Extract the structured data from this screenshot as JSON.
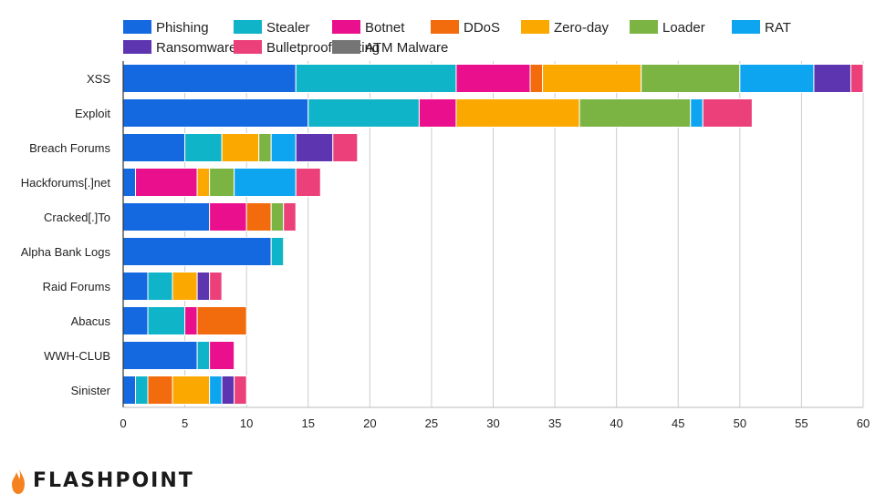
{
  "chart_data": {
    "type": "bar",
    "orientation": "horizontal",
    "stacked": true,
    "title": "",
    "xlabel": "",
    "ylabel": "",
    "xlim": [
      0,
      60
    ],
    "x_ticks": [
      0,
      5,
      10,
      15,
      20,
      25,
      30,
      35,
      40,
      45,
      50,
      55,
      60
    ],
    "grid": "vertical",
    "legend_position": "top",
    "categories": [
      "XSS",
      "Exploit",
      "Breach Forums",
      "Hackforums[.]net",
      "Cracked[.]To",
      "Alpha Bank Logs",
      "Raid Forums",
      "Abacus",
      "WWH-CLUB",
      "Sinister"
    ],
    "series": [
      {
        "name": "Phishing",
        "color": "#1469e0",
        "values": [
          14,
          15,
          5,
          1,
          7,
          12,
          2,
          2,
          6,
          1
        ]
      },
      {
        "name": "Stealer",
        "color": "#10b4c8",
        "values": [
          13,
          9,
          3,
          0,
          0,
          1,
          2,
          3,
          1,
          1
        ]
      },
      {
        "name": "Botnet",
        "color": "#ea0f8c",
        "values": [
          6,
          3,
          0,
          5,
          3,
          0,
          0,
          1,
          2,
          0
        ]
      },
      {
        "name": "DDoS",
        "color": "#f26b0c",
        "values": [
          1,
          0,
          0,
          0,
          2,
          0,
          0,
          4,
          0,
          2
        ]
      },
      {
        "name": "Zero-day",
        "color": "#fba800",
        "values": [
          8,
          10,
          3,
          1,
          0,
          0,
          2,
          0,
          0,
          3
        ]
      },
      {
        "name": "Loader",
        "color": "#7cb444",
        "values": [
          8,
          9,
          1,
          2,
          1,
          0,
          0,
          0,
          0,
          0
        ]
      },
      {
        "name": "RAT",
        "color": "#0ea5f0",
        "values": [
          6,
          1,
          2,
          5,
          0,
          0,
          0,
          0,
          0,
          1
        ]
      },
      {
        "name": "Ransomware",
        "color": "#5e35b1",
        "values": [
          3,
          0,
          3,
          0,
          0,
          0,
          1,
          0,
          0,
          1
        ]
      },
      {
        "name": "Bulletproof hosting",
        "color": "#ec407a",
        "values": [
          1,
          4,
          2,
          2,
          1,
          0,
          1,
          0,
          0,
          1
        ]
      },
      {
        "name": "ATM Malware",
        "color": "#757575",
        "values": [
          0,
          0,
          0,
          0,
          0,
          0,
          0,
          0,
          0,
          0
        ]
      }
    ]
  },
  "brand": {
    "name": "FLASHPOINT",
    "logo_icon": "flame-icon",
    "logo_color": "#f5821f"
  }
}
